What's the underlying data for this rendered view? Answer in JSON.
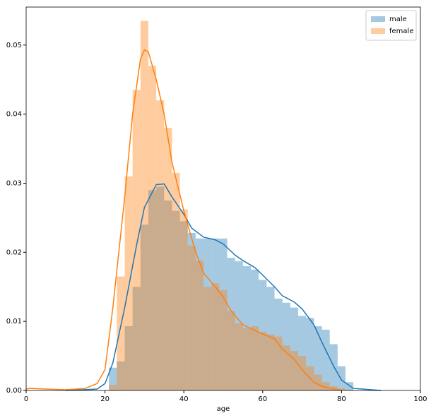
{
  "chart_data": {
    "type": "histogram",
    "xlabel": "age",
    "bins": [
      21,
      23,
      25,
      27,
      29,
      31,
      33,
      35,
      37,
      39,
      41,
      43,
      45,
      47,
      49,
      51,
      53,
      55,
      57,
      59,
      61,
      63,
      65,
      67,
      69,
      71,
      73,
      75,
      77,
      79,
      81,
      83
    ],
    "series": [
      {
        "name": "male",
        "color": "#1f77b4",
        "values": [
          0.0033,
          0.0042,
          0.0093,
          0.015,
          0.024,
          0.029,
          0.0295,
          0.0275,
          0.026,
          0.0245,
          0.0228,
          0.022,
          0.022,
          0.022,
          0.022,
          0.0192,
          0.0187,
          0.018,
          0.0175,
          0.016,
          0.015,
          0.0133,
          0.0127,
          0.012,
          0.0108,
          0.0105,
          0.0093,
          0.0088,
          0.0067,
          0.0035,
          0.0012
        ],
        "kde": {
          "x": [
            10,
            18,
            20,
            22,
            25,
            28,
            30,
            33,
            35,
            37,
            40,
            42,
            45,
            48,
            50,
            53,
            55,
            58,
            60,
            63,
            65,
            68,
            70,
            73,
            75,
            78,
            80,
            83,
            90
          ],
          "y": [
            0,
            0.0002,
            0.001,
            0.004,
            0.012,
            0.021,
            0.0265,
            0.0298,
            0.0299,
            0.028,
            0.0255,
            0.0235,
            0.0222,
            0.0218,
            0.0212,
            0.0196,
            0.0188,
            0.0178,
            0.0167,
            0.015,
            0.0137,
            0.0128,
            0.0118,
            0.0095,
            0.007,
            0.0035,
            0.0015,
            0.0003,
            0
          ]
        }
      },
      {
        "name": "female",
        "color": "#ff7f0e",
        "values": [
          0.0008,
          0.0165,
          0.031,
          0.0435,
          0.0535,
          0.047,
          0.042,
          0.038,
          0.0315,
          0.0262,
          0.021,
          0.0188,
          0.015,
          0.0155,
          0.0145,
          0.0115,
          0.0097,
          0.009,
          0.0093,
          0.0085,
          0.0081,
          0.0078,
          0.0065,
          0.0057,
          0.005,
          0.0035,
          0.0023,
          0.0012,
          0.0006,
          0.0003,
          0.0001
        ],
        "kde": {
          "x": [
            0,
            1,
            5,
            10,
            15,
            18,
            20,
            22,
            25,
            27,
            29,
            30,
            31,
            33,
            35,
            37,
            40,
            43,
            45,
            48,
            50,
            52,
            55,
            58,
            60,
            63,
            65,
            68,
            70,
            73,
            75,
            78,
            80
          ],
          "y": [
            0.0002,
            0.0003,
            0.0002,
            0.0001,
            0.0003,
            0.001,
            0.003,
            0.012,
            0.028,
            0.04,
            0.048,
            0.0493,
            0.049,
            0.045,
            0.04,
            0.033,
            0.026,
            0.02,
            0.017,
            0.015,
            0.0135,
            0.0115,
            0.0095,
            0.0087,
            0.0082,
            0.0075,
            0.006,
            0.0045,
            0.003,
            0.0012,
            0.0006,
            0.0002,
            0
          ]
        }
      }
    ],
    "xlim": [
      0,
      100
    ],
    "xticks": [
      0,
      20,
      40,
      60,
      80,
      100
    ],
    "ylim": [
      0,
      0.0555
    ],
    "yticks": [
      {
        "value": 0,
        "label": "0.00"
      },
      {
        "value": 0.01,
        "label": "0.01"
      },
      {
        "value": 0.02,
        "label": "0.02"
      },
      {
        "value": 0.03,
        "label": "0.03"
      },
      {
        "value": 0.04,
        "label": "0.04"
      },
      {
        "value": 0.05,
        "label": "0.05"
      }
    ],
    "legend": "upper right",
    "bar_alpha": 0.4
  }
}
